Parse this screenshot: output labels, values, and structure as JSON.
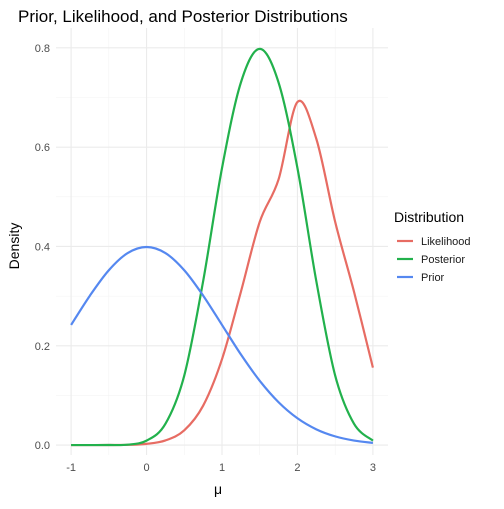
{
  "chart_data": {
    "type": "line",
    "title": "Prior, Likelihood, and Posterior Distributions",
    "xlabel": "μ",
    "ylabel": "Density",
    "xlim": [
      -1,
      3
    ],
    "ylim": [
      0,
      0.8
    ],
    "x_ticks": [
      -1,
      0,
      1,
      2,
      3
    ],
    "y_ticks": [
      0.0,
      0.2,
      0.4,
      0.6,
      0.8
    ],
    "x_tick_labels": [
      "-1",
      "0",
      "1",
      "2",
      "3"
    ],
    "y_tick_labels": [
      "0.0",
      "0.2",
      "0.4",
      "0.6",
      "0.8"
    ],
    "grid": true,
    "legend": {
      "title": "Distribution",
      "position": "right"
    },
    "x": [
      -1.0,
      -0.75,
      -0.5,
      -0.25,
      0.0,
      0.25,
      0.5,
      0.75,
      1.0,
      1.25,
      1.5,
      1.75,
      2.0,
      2.25,
      2.5,
      2.75,
      3.0
    ],
    "series": [
      {
        "name": "Likelihood",
        "color": "#E76C63",
        "values": [
          0.0,
          0.0,
          0.0001,
          0.0005,
          0.0024,
          0.0093,
          0.0297,
          0.0793,
          0.173,
          0.3085,
          0.4495,
          0.5352,
          0.691,
          0.6167,
          0.4495,
          0.3085,
          0.156
        ]
      },
      {
        "name": "Posterior",
        "color": "#22B14C",
        "values": [
          0.0,
          0.0,
          0.0001,
          0.0008,
          0.0089,
          0.0428,
          0.14,
          0.33,
          0.5578,
          0.73,
          0.7979,
          0.73,
          0.5578,
          0.33,
          0.14,
          0.0428,
          0.0089
        ]
      },
      {
        "name": "Prior",
        "color": "#5588F0",
        "values": [
          0.242,
          0.3011,
          0.3521,
          0.3867,
          0.3989,
          0.3867,
          0.3521,
          0.3011,
          0.242,
          0.1826,
          0.1295,
          0.0863,
          0.054,
          0.0317,
          0.0175,
          0.0091,
          0.0044
        ]
      }
    ]
  }
}
